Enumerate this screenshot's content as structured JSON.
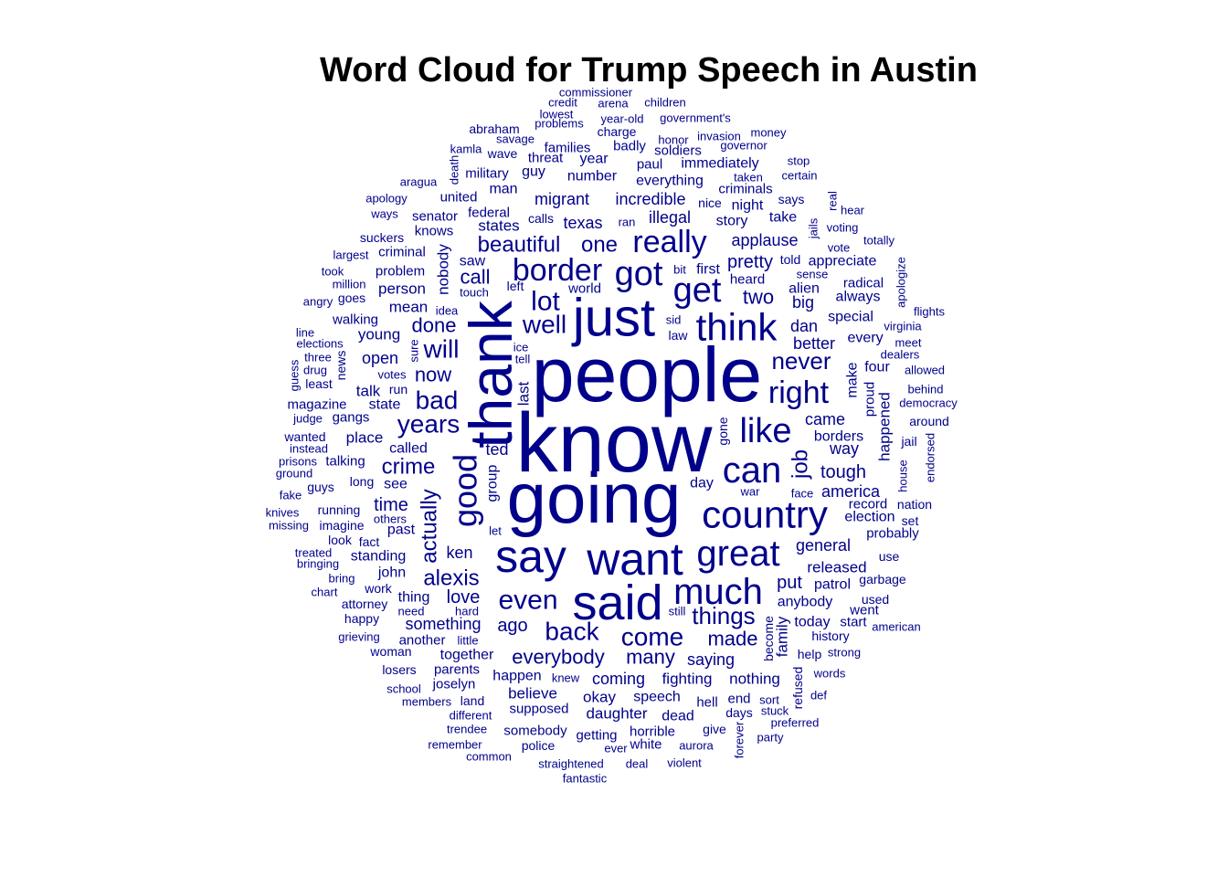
{
  "chart_data": {
    "type": "wordcloud",
    "title": "Word Cloud for Trump Speech in Austin",
    "color": "#00008B",
    "words": [
      {
        "text": "know",
        "size": 92
      },
      {
        "text": "people",
        "size": 84
      },
      {
        "text": "going",
        "size": 78
      },
      {
        "text": "thank",
        "size": 66,
        "rotated": true
      },
      {
        "text": "just",
        "size": 58
      },
      {
        "text": "said",
        "size": 54
      },
      {
        "text": "want",
        "size": 50
      },
      {
        "text": "say",
        "size": 50
      },
      {
        "text": "country",
        "size": 42
      },
      {
        "text": "think",
        "size": 42
      },
      {
        "text": "great",
        "size": 40
      },
      {
        "text": "much",
        "size": 40
      },
      {
        "text": "can",
        "size": 40
      },
      {
        "text": "got",
        "size": 38
      },
      {
        "text": "get",
        "size": 38
      },
      {
        "text": "like",
        "size": 38
      },
      {
        "text": "good",
        "size": 36,
        "rotated": true
      },
      {
        "text": "border",
        "size": 34
      },
      {
        "text": "really",
        "size": 34
      },
      {
        "text": "right",
        "size": 34
      },
      {
        "text": "even",
        "size": 30
      },
      {
        "text": "lot",
        "size": 30
      },
      {
        "text": "well",
        "size": 28
      },
      {
        "text": "back",
        "size": 28
      },
      {
        "text": "come",
        "size": 28
      },
      {
        "text": "years",
        "size": 28
      },
      {
        "text": "bad",
        "size": 28
      },
      {
        "text": "will",
        "size": 28
      },
      {
        "text": "never",
        "size": 26
      },
      {
        "text": "things",
        "size": 26
      },
      {
        "text": "beautiful",
        "size": 24
      },
      {
        "text": "one",
        "size": 24
      },
      {
        "text": "actually",
        "size": 24,
        "rotated": true
      },
      {
        "text": "alexis",
        "size": 24
      },
      {
        "text": "crime",
        "size": 24
      },
      {
        "text": "made",
        "size": 22
      },
      {
        "text": "many",
        "size": 22
      },
      {
        "text": "everybody",
        "size": 22
      },
      {
        "text": "job",
        "size": 24,
        "rotated": true
      },
      {
        "text": "call",
        "size": 22
      },
      {
        "text": "done",
        "size": 22
      },
      {
        "text": "now",
        "size": 22
      },
      {
        "text": "two",
        "size": 22
      },
      {
        "text": "pretty",
        "size": 20
      },
      {
        "text": "time",
        "size": 20
      },
      {
        "text": "love",
        "size": 20
      },
      {
        "text": "put",
        "size": 20
      },
      {
        "text": "ago",
        "size": 20
      },
      {
        "text": "tough",
        "size": 20
      },
      {
        "text": "general",
        "size": 18
      },
      {
        "text": "applause",
        "size": 18
      },
      {
        "text": "illegal",
        "size": 18
      },
      {
        "text": "incredible",
        "size": 18
      },
      {
        "text": "migrant",
        "size": 18
      },
      {
        "text": "texas",
        "size": 18
      },
      {
        "text": "states",
        "size": 17
      },
      {
        "text": "came",
        "size": 18
      },
      {
        "text": "better",
        "size": 18
      },
      {
        "text": "america",
        "size": 18
      },
      {
        "text": "released",
        "size": 17
      },
      {
        "text": "coming",
        "size": 18
      },
      {
        "text": "saying",
        "size": 18
      },
      {
        "text": "something",
        "size": 18
      },
      {
        "text": "fighting",
        "size": 17
      },
      {
        "text": "nothing",
        "size": 17
      },
      {
        "text": "happened",
        "size": 17,
        "rotated": true
      },
      {
        "text": "ken",
        "size": 18
      },
      {
        "text": "ted",
        "size": 18
      },
      {
        "text": "dan",
        "size": 18
      },
      {
        "text": "alien",
        "size": 16
      },
      {
        "text": "big",
        "size": 18
      },
      {
        "text": "family",
        "size": 17,
        "rotated": true
      },
      {
        "text": "open",
        "size": 18
      },
      {
        "text": "place",
        "size": 17
      },
      {
        "text": "talk",
        "size": 17
      },
      {
        "text": "young",
        "size": 17
      },
      {
        "text": "mean",
        "size": 17
      },
      {
        "text": "person",
        "size": 17
      },
      {
        "text": "story",
        "size": 16
      },
      {
        "text": "way",
        "size": 18
      },
      {
        "text": "nobody",
        "size": 17,
        "rotated": true
      },
      {
        "text": "last",
        "size": 17,
        "rotated": true
      },
      {
        "text": "group",
        "size": 16,
        "rotated": true
      },
      {
        "text": "make",
        "size": 16,
        "rotated": true
      },
      {
        "text": "okay",
        "size": 17
      },
      {
        "text": "daughter",
        "size": 17
      },
      {
        "text": "believe",
        "size": 17
      },
      {
        "text": "speech",
        "size": 16
      },
      {
        "text": "happen",
        "size": 16
      },
      {
        "text": "together",
        "size": 16
      },
      {
        "text": "patrol",
        "size": 16
      },
      {
        "text": "anybody",
        "size": 16
      },
      {
        "text": "today",
        "size": 16
      },
      {
        "text": "special",
        "size": 16
      },
      {
        "text": "always",
        "size": 16
      },
      {
        "text": "appreciate",
        "size": 16
      },
      {
        "text": "first",
        "size": 16
      },
      {
        "text": "everything",
        "size": 16
      },
      {
        "text": "immediately",
        "size": 16
      },
      {
        "text": "number",
        "size": 16
      },
      {
        "text": "take",
        "size": 16
      },
      {
        "text": "night",
        "size": 16
      },
      {
        "text": "criminals",
        "size": 15
      },
      {
        "text": "day",
        "size": 16
      },
      {
        "text": "borders",
        "size": 16
      },
      {
        "text": "election",
        "size": 16
      },
      {
        "text": "four",
        "size": 16
      },
      {
        "text": "every",
        "size": 16
      },
      {
        "text": "standing",
        "size": 16
      },
      {
        "text": "john",
        "size": 16
      },
      {
        "text": "thing",
        "size": 16
      },
      {
        "text": "past",
        "size": 16
      },
      {
        "text": "called",
        "size": 16
      },
      {
        "text": "talking",
        "size": 15
      },
      {
        "text": "state",
        "size": 16
      },
      {
        "text": "see",
        "size": 16
      },
      {
        "text": "guy",
        "size": 16
      },
      {
        "text": "year",
        "size": 16
      },
      {
        "text": "man",
        "size": 16
      },
      {
        "text": "saw",
        "size": 16
      },
      {
        "text": "dead",
        "size": 16
      },
      {
        "text": "hell",
        "size": 15
      },
      {
        "text": "end",
        "size": 15
      },
      {
        "text": "give",
        "size": 14
      },
      {
        "text": "somebody",
        "size": 15
      },
      {
        "text": "getting",
        "size": 15
      },
      {
        "text": "horrible",
        "size": 15
      },
      {
        "text": "white",
        "size": 15
      },
      {
        "text": "supposed",
        "size": 15
      },
      {
        "text": "joselyn",
        "size": 15
      },
      {
        "text": "parents",
        "size": 15
      },
      {
        "text": "another",
        "size": 15
      },
      {
        "text": "attorney",
        "size": 14
      },
      {
        "text": "running",
        "size": 14
      },
      {
        "text": "imagine",
        "size": 14
      },
      {
        "text": "long",
        "size": 14
      },
      {
        "text": "gangs",
        "size": 15
      },
      {
        "text": "magazine",
        "size": 15
      },
      {
        "text": "problem",
        "size": 15
      },
      {
        "text": "criminal",
        "size": 15
      },
      {
        "text": "knows",
        "size": 15
      },
      {
        "text": "federal",
        "size": 15
      },
      {
        "text": "senator",
        "size": 15
      },
      {
        "text": "united",
        "size": 15
      },
      {
        "text": "military",
        "size": 15
      },
      {
        "text": "threat",
        "size": 15
      },
      {
        "text": "families",
        "size": 15
      },
      {
        "text": "badly",
        "size": 15
      },
      {
        "text": "paul",
        "size": 15
      },
      {
        "text": "soldiers",
        "size": 15
      },
      {
        "text": "world",
        "size": 15
      },
      {
        "text": "walking",
        "size": 15
      },
      {
        "text": "heard",
        "size": 15
      },
      {
        "text": "record",
        "size": 15
      },
      {
        "text": "probably",
        "size": 15
      },
      {
        "text": "went",
        "size": 15
      },
      {
        "text": "start",
        "size": 15
      },
      {
        "text": "history",
        "size": 14
      },
      {
        "text": "strong",
        "size": 13
      },
      {
        "text": "help",
        "size": 14
      },
      {
        "text": "garbage",
        "size": 14
      },
      {
        "text": "used",
        "size": 14
      },
      {
        "text": "use",
        "size": 14
      },
      {
        "text": "nation",
        "size": 14
      },
      {
        "text": "set",
        "size": 14
      },
      {
        "text": "jail",
        "size": 14
      },
      {
        "text": "around",
        "size": 14
      },
      {
        "text": "democracy",
        "size": 13
      },
      {
        "text": "behind",
        "size": 13
      },
      {
        "text": "allowed",
        "size": 13
      },
      {
        "text": "dealers",
        "size": 13
      },
      {
        "text": "meet",
        "size": 13
      },
      {
        "text": "virginia",
        "size": 13
      },
      {
        "text": "flights",
        "size": 13
      },
      {
        "text": "radical",
        "size": 15
      },
      {
        "text": "sense",
        "size": 13
      },
      {
        "text": "told",
        "size": 14
      },
      {
        "text": "vote",
        "size": 13
      },
      {
        "text": "voting",
        "size": 13
      },
      {
        "text": "totally",
        "size": 13
      },
      {
        "text": "hear",
        "size": 13
      },
      {
        "text": "says",
        "size": 14
      },
      {
        "text": "ran",
        "size": 13
      },
      {
        "text": "calls",
        "size": 14
      },
      {
        "text": "nice",
        "size": 14
      },
      {
        "text": "taken",
        "size": 13
      },
      {
        "text": "certain",
        "size": 13
      },
      {
        "text": "stop",
        "size": 13
      },
      {
        "text": "governor",
        "size": 13
      },
      {
        "text": "invasion",
        "size": 13
      },
      {
        "text": "money",
        "size": 13
      },
      {
        "text": "honor",
        "size": 13
      },
      {
        "text": "charge",
        "size": 14
      },
      {
        "text": "year-old",
        "size": 13
      },
      {
        "text": "government's",
        "size": 13
      },
      {
        "text": "arena",
        "size": 13
      },
      {
        "text": "children",
        "size": 13
      },
      {
        "text": "credit",
        "size": 13
      },
      {
        "text": "commissioner",
        "size": 13
      },
      {
        "text": "lowest",
        "size": 13
      },
      {
        "text": "problems",
        "size": 13
      },
      {
        "text": "abraham",
        "size": 14
      },
      {
        "text": "savage",
        "size": 13
      },
      {
        "text": "kamla",
        "size": 13
      },
      {
        "text": "wave",
        "size": 14
      },
      {
        "text": "aragua",
        "size": 13
      },
      {
        "text": "apology",
        "size": 13
      },
      {
        "text": "ways",
        "size": 13
      },
      {
        "text": "suckers",
        "size": 14
      },
      {
        "text": "largest",
        "size": 13
      },
      {
        "text": "took",
        "size": 13
      },
      {
        "text": "million",
        "size": 13
      },
      {
        "text": "angry",
        "size": 13
      },
      {
        "text": "goes",
        "size": 14
      },
      {
        "text": "idea",
        "size": 13
      },
      {
        "text": "touch",
        "size": 13
      },
      {
        "text": "left",
        "size": 14
      },
      {
        "text": "line",
        "size": 13
      },
      {
        "text": "elections",
        "size": 13
      },
      {
        "text": "three",
        "size": 13
      },
      {
        "text": "drug",
        "size": 13
      },
      {
        "text": "least",
        "size": 14
      },
      {
        "text": "judge",
        "size": 13
      },
      {
        "text": "votes",
        "size": 13
      },
      {
        "text": "run",
        "size": 14
      },
      {
        "text": "ice",
        "size": 13
      },
      {
        "text": "tell",
        "size": 13
      },
      {
        "text": "sid",
        "size": 13
      },
      {
        "text": "law",
        "size": 14
      },
      {
        "text": "bit",
        "size": 13
      },
      {
        "text": "wanted",
        "size": 14
      },
      {
        "text": "instead",
        "size": 13
      },
      {
        "text": "prisons",
        "size": 13
      },
      {
        "text": "ground",
        "size": 13
      },
      {
        "text": "guys",
        "size": 14
      },
      {
        "text": "fake",
        "size": 13
      },
      {
        "text": "knives",
        "size": 13
      },
      {
        "text": "missing",
        "size": 13
      },
      {
        "text": "others",
        "size": 13
      },
      {
        "text": "look",
        "size": 14
      },
      {
        "text": "fact",
        "size": 14
      },
      {
        "text": "let",
        "size": 13
      },
      {
        "text": "treated",
        "size": 13
      },
      {
        "text": "bringing",
        "size": 13
      },
      {
        "text": "bring",
        "size": 13
      },
      {
        "text": "chart",
        "size": 13
      },
      {
        "text": "work",
        "size": 14
      },
      {
        "text": "need",
        "size": 13
      },
      {
        "text": "hard",
        "size": 13
      },
      {
        "text": "happy",
        "size": 14
      },
      {
        "text": "grieving",
        "size": 13
      },
      {
        "text": "little",
        "size": 13
      },
      {
        "text": "woman",
        "size": 14
      },
      {
        "text": "losers",
        "size": 14
      },
      {
        "text": "school",
        "size": 13
      },
      {
        "text": "members",
        "size": 13
      },
      {
        "text": "land",
        "size": 14
      },
      {
        "text": "different",
        "size": 13
      },
      {
        "text": "trendee",
        "size": 13
      },
      {
        "text": "remember",
        "size": 13
      },
      {
        "text": "common",
        "size": 13
      },
      {
        "text": "knew",
        "size": 13
      },
      {
        "text": "still",
        "size": 13
      },
      {
        "text": "war",
        "size": 13
      },
      {
        "text": "face",
        "size": 13
      },
      {
        "text": "sort",
        "size": 13
      },
      {
        "text": "days",
        "size": 14
      },
      {
        "text": "stuck",
        "size": 13
      },
      {
        "text": "party",
        "size": 13
      },
      {
        "text": "preferred",
        "size": 13
      },
      {
        "text": "def",
        "size": 13
      },
      {
        "text": "words",
        "size": 13
      },
      {
        "text": "american",
        "size": 13
      },
      {
        "text": "police",
        "size": 14
      },
      {
        "text": "aurora",
        "size": 13
      },
      {
        "text": "ever",
        "size": 13
      },
      {
        "text": "straightened",
        "size": 13
      },
      {
        "text": "deal",
        "size": 13
      },
      {
        "text": "violent",
        "size": 13
      },
      {
        "text": "fantastic",
        "size": 13
      },
      {
        "text": "death",
        "size": 13,
        "rotated": true
      },
      {
        "text": "real",
        "size": 13,
        "rotated": true
      },
      {
        "text": "jails",
        "size": 13,
        "rotated": true
      },
      {
        "text": "apologize",
        "size": 13,
        "rotated": true
      },
      {
        "text": "sure",
        "size": 13,
        "rotated": true
      },
      {
        "text": "news",
        "size": 14,
        "rotated": true
      },
      {
        "text": "guess",
        "size": 13,
        "rotated": true
      },
      {
        "text": "proud",
        "size": 15,
        "rotated": true
      },
      {
        "text": "gone",
        "size": 14,
        "rotated": true
      },
      {
        "text": "house",
        "size": 13,
        "rotated": true
      },
      {
        "text": "endorsed",
        "size": 13,
        "rotated": true
      },
      {
        "text": "become",
        "size": 14,
        "rotated": true
      },
      {
        "text": "refused",
        "size": 14,
        "rotated": true
      },
      {
        "text": "forever",
        "size": 13,
        "rotated": true
      }
    ]
  }
}
